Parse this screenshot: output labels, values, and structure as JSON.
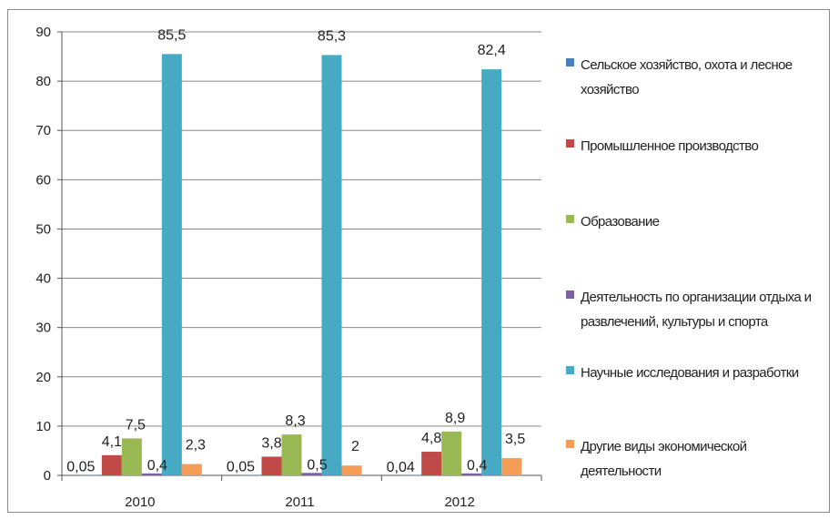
{
  "chart_data": {
    "type": "bar",
    "categories": [
      "2010",
      "2011",
      "2012"
    ],
    "ylim": [
      0,
      90
    ],
    "yticks": [
      0,
      10,
      20,
      30,
      40,
      50,
      60,
      70,
      80,
      90
    ],
    "grid": true,
    "legend_position": "right",
    "series": [
      {
        "name": "Сельское хозяйство, охота и лесное хозяйство",
        "color": "#4a7ebb",
        "values": [
          0.05,
          0.05,
          0.04
        ],
        "labels": [
          "0,05",
          "0,05",
          "0,04"
        ]
      },
      {
        "name": "Промышленное производство",
        "color": "#be4b48",
        "values": [
          4.1,
          3.8,
          4.8
        ],
        "labels": [
          "4,1",
          "3,8",
          "4,8"
        ]
      },
      {
        "name": "Образование",
        "color": "#98b954",
        "values": [
          7.5,
          8.3,
          8.9
        ],
        "labels": [
          "7,5",
          "8,3",
          "8,9"
        ]
      },
      {
        "name": "Деятельность по организации отдыха и развлечений, культуры и спорта",
        "color": "#7d60a0",
        "values": [
          0.4,
          0.5,
          0.4
        ],
        "labels": [
          "0,4",
          "0,5",
          "0,4"
        ]
      },
      {
        "name": "Научные исследования и разработки",
        "color": "#46aac5",
        "values": [
          85.5,
          85.3,
          82.4
        ],
        "labels": [
          "85,5",
          "85,3",
          "82,4"
        ]
      },
      {
        "name": "Другие виды экономической деятельности",
        "color": "#f59d56",
        "values": [
          2.3,
          2,
          3.5
        ],
        "labels": [
          "2,3",
          "2",
          "3,5"
        ]
      }
    ]
  }
}
